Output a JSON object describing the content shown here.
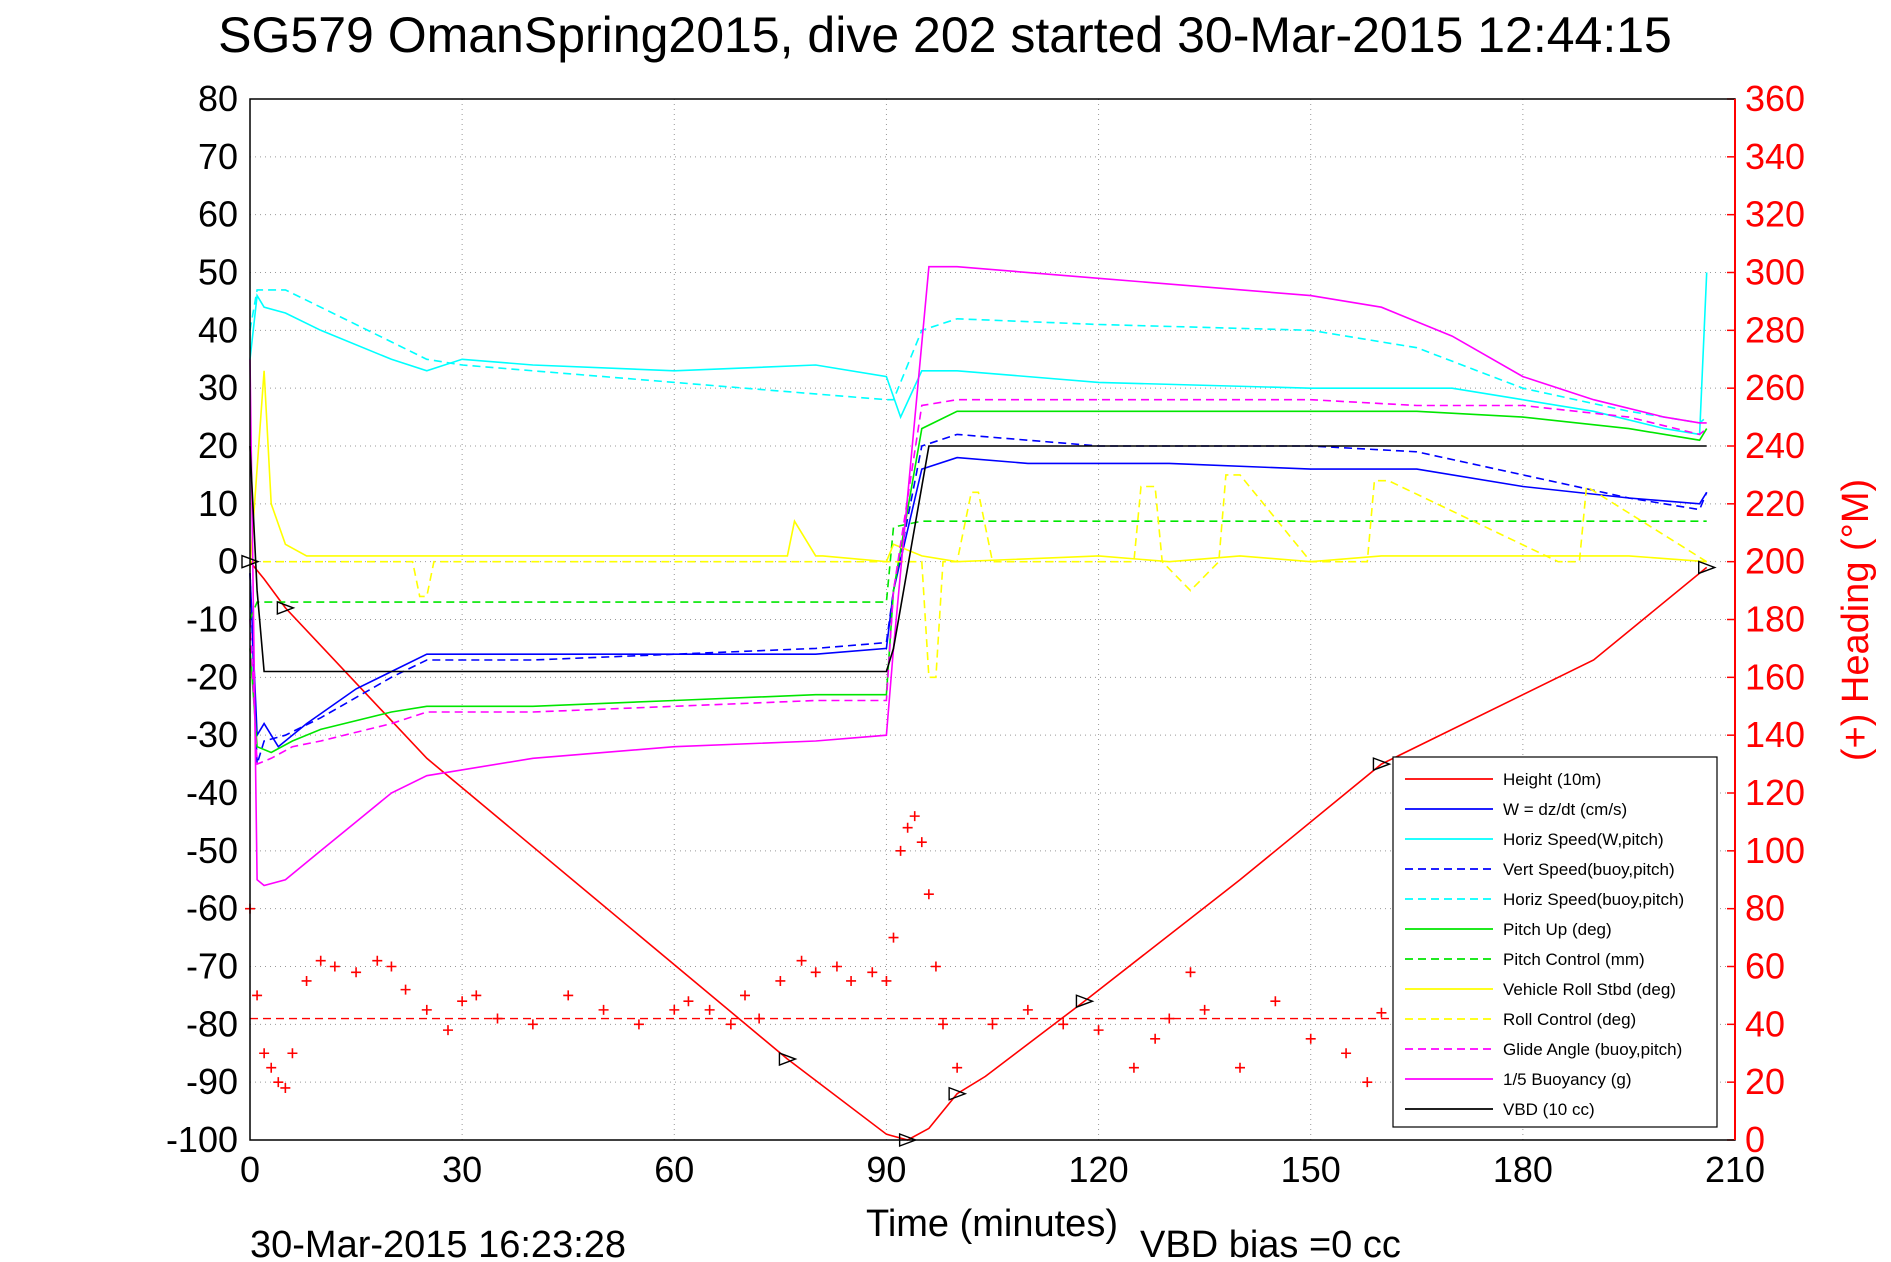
{
  "title": "SG579 OmanSpring2015, dive 202 started 30-Mar-2015 12:44:15",
  "footer": {
    "left": "30-Mar-2015 16:23:28",
    "right": "VBD bias =0 cc"
  },
  "chart_data": {
    "type": "line",
    "xlabel": "Time (minutes)",
    "ylabel": "",
    "y2label": "(+) Heading (°M)",
    "xlim": [
      0,
      210
    ],
    "ylim": [
      -100,
      80
    ],
    "y2lim": [
      0,
      360
    ],
    "xticks": [
      "0",
      "30",
      "60",
      "90",
      "120",
      "150",
      "180",
      "210"
    ],
    "yticks": [
      "80",
      "70",
      "60",
      "50",
      "40",
      "30",
      "20",
      "10",
      "0",
      "-10",
      "-20",
      "-30",
      "-40",
      "-50",
      "-60",
      "-70",
      "-80",
      "-90",
      "-100"
    ],
    "y2ticks": [
      "360",
      "340",
      "320",
      "300",
      "280",
      "260",
      "240",
      "220",
      "200",
      "180",
      "160",
      "140",
      "120",
      "100",
      "80",
      "60",
      "40",
      "20",
      "0"
    ],
    "grid": true,
    "legend_position": "bottom-right",
    "series": [
      {
        "name": "Height (10m)",
        "color": "#ff0000",
        "style": "solid",
        "x": [
          0,
          2,
          5,
          25,
          76,
          90,
          93,
          96,
          100,
          104,
          118,
          140,
          160,
          190,
          206
        ],
        "y": [
          0,
          -3,
          -8,
          -34,
          -86,
          -99,
          -100,
          -98,
          -92,
          -89,
          -76,
          -55,
          -35,
          -17,
          -1
        ]
      },
      {
        "name": "W = dz/dt (cm/s)",
        "color": "#0000ff",
        "style": "solid",
        "x": [
          0,
          1,
          2,
          4,
          8,
          15,
          25,
          40,
          60,
          80,
          90,
          91,
          95,
          100,
          110,
          130,
          150,
          165,
          180,
          195,
          205,
          206
        ],
        "y": [
          -2,
          -30,
          -28,
          -32,
          -28,
          -22,
          -16,
          -16,
          -16,
          -16,
          -15,
          -5,
          16,
          18,
          17,
          17,
          16,
          16,
          13,
          11,
          10,
          12
        ]
      },
      {
        "name": "Horiz Speed(W,pitch)",
        "color": "#00ffff",
        "style": "solid",
        "x": [
          0,
          1,
          2,
          5,
          10,
          20,
          25,
          30,
          40,
          60,
          80,
          90,
          92,
          95,
          100,
          120,
          150,
          170,
          180,
          190,
          200,
          205,
          206
        ],
        "y": [
          35,
          46,
          44,
          43,
          40,
          35,
          33,
          35,
          34,
          33,
          34,
          32,
          25,
          33,
          33,
          31,
          30,
          30,
          28,
          26,
          23,
          22,
          50
        ]
      },
      {
        "name": "Vert Speed(buoy,pitch)",
        "color": "#0000ff",
        "style": "dashed",
        "x": [
          0,
          1,
          2,
          5,
          10,
          20,
          25,
          40,
          60,
          80,
          90,
          91,
          95,
          100,
          120,
          150,
          165,
          180,
          195,
          205,
          206
        ],
        "y": [
          -2,
          -35,
          -31,
          -30,
          -27,
          -20,
          -17,
          -17,
          -16,
          -15,
          -14,
          -5,
          20,
          22,
          20,
          20,
          19,
          15,
          11,
          9,
          12
        ]
      },
      {
        "name": "Horiz Speed(buoy,pitch)",
        "color": "#00ffff",
        "style": "dashed",
        "x": [
          0,
          1,
          5,
          10,
          20,
          25,
          30,
          50,
          70,
          90,
          91,
          95,
          100,
          120,
          150,
          165,
          180,
          195,
          205,
          206
        ],
        "y": [
          40,
          47,
          47,
          44,
          38,
          35,
          34,
          32,
          30,
          28,
          28,
          40,
          42,
          41,
          40,
          37,
          30,
          26,
          24,
          25
        ]
      },
      {
        "name": "Pitch Up (deg)",
        "color": "#00e600",
        "style": "solid",
        "x": [
          0,
          1,
          3,
          6,
          10,
          20,
          25,
          40,
          60,
          80,
          90,
          91,
          95,
          100,
          120,
          150,
          165,
          180,
          195,
          205,
          206
        ],
        "y": [
          -15,
          -32,
          -33,
          -31,
          -29,
          -26,
          -25,
          -25,
          -24,
          -23,
          -23,
          -5,
          23,
          26,
          26,
          26,
          26,
          25,
          23,
          21,
          23
        ]
      },
      {
        "name": "Pitch Control (mm)",
        "color": "#00e600",
        "style": "dashed",
        "x": [
          0,
          1,
          5,
          90,
          91,
          95,
          206
        ],
        "y": [
          -10,
          -7,
          -7,
          -7,
          6,
          7,
          7
        ]
      },
      {
        "name": "Vehicle Roll Stbd (deg)",
        "color": "#ffff00",
        "style": "solid",
        "x": [
          0,
          2,
          3,
          5,
          8,
          20,
          40,
          60,
          76,
          77,
          80,
          81,
          90,
          91,
          95,
          100,
          120,
          130,
          140,
          150,
          160,
          180,
          195,
          206
        ],
        "y": [
          -1,
          33,
          10,
          3,
          1,
          1,
          1,
          1,
          1,
          7,
          1,
          1,
          0,
          3,
          1,
          0,
          1,
          0,
          1,
          0,
          1,
          1,
          1,
          0
        ]
      },
      {
        "name": "Roll Control (deg)",
        "color": "#ffff00",
        "style": "dashed",
        "x": [
          0,
          5,
          23,
          24,
          25,
          26,
          90,
          95,
          96,
          97,
          98,
          100,
          102,
          103,
          105,
          120,
          125,
          126,
          128,
          129,
          133,
          137,
          138,
          140,
          150,
          158,
          159,
          161,
          185,
          188,
          189,
          206
        ],
        "y": [
          0,
          0,
          0,
          -6,
          -6,
          0,
          0,
          0,
          -20,
          -20,
          0,
          0,
          12,
          12,
          0,
          0,
          0,
          13,
          13,
          0,
          -5,
          0,
          15,
          15,
          0,
          0,
          14,
          14,
          0,
          0,
          13,
          0
        ]
      },
      {
        "name": "Glide Angle (buoy,pitch)",
        "color": "#ff00ff",
        "style": "dashed",
        "x": [
          0,
          1,
          3,
          6,
          10,
          20,
          25,
          40,
          60,
          80,
          90,
          91,
          95,
          100,
          120,
          150,
          165,
          180,
          195,
          205,
          206
        ],
        "y": [
          -10,
          -35,
          -34,
          -32,
          -31,
          -28,
          -26,
          -26,
          -25,
          -24,
          -24,
          -5,
          27,
          28,
          28,
          28,
          27,
          27,
          25,
          22,
          23
        ]
      },
      {
        "name": "1/5 Buoyancy (g)",
        "color": "#ff00ff",
        "style": "solid",
        "x": [
          0,
          1,
          2,
          5,
          10,
          15,
          20,
          25,
          40,
          60,
          80,
          90,
          91,
          96,
          100,
          120,
          150,
          160,
          170,
          180,
          190,
          200,
          205,
          206
        ],
        "y": [
          35,
          -55,
          -56,
          -55,
          -50,
          -45,
          -40,
          -37,
          -34,
          -32,
          -31,
          -30,
          -15,
          51,
          51,
          49,
          46,
          44,
          39,
          32,
          28,
          25,
          24,
          24
        ]
      },
      {
        "name": "VBD (10 cc)",
        "color": "#000000",
        "style": "solid",
        "x": [
          0,
          1,
          2,
          90,
          91,
          96,
          206
        ],
        "y": [
          20,
          -5,
          -19,
          -19,
          -15,
          20,
          20
        ]
      }
    ],
    "heading": {
      "color": "#ff0000",
      "marker": "+",
      "axis": "right",
      "x": [
        0,
        1,
        2,
        3,
        4,
        5,
        6,
        8,
        10,
        12,
        15,
        18,
        20,
        22,
        25,
        28,
        30,
        32,
        35,
        40,
        45,
        50,
        55,
        60,
        62,
        65,
        68,
        70,
        72,
        75,
        78,
        80,
        83,
        85,
        88,
        90,
        91,
        92,
        93,
        94,
        95,
        96,
        97,
        98,
        100,
        105,
        110,
        115,
        120,
        125,
        128,
        130,
        133,
        135,
        140,
        145,
        150,
        155,
        158,
        160
      ],
      "y": [
        80,
        50,
        30,
        25,
        20,
        18,
        30,
        55,
        62,
        60,
        58,
        62,
        60,
        52,
        45,
        38,
        48,
        50,
        42,
        40,
        50,
        45,
        40,
        45,
        48,
        45,
        40,
        50,
        42,
        55,
        62,
        58,
        60,
        55,
        58,
        55,
        70,
        100,
        108,
        112,
        103,
        85,
        60,
        40,
        25,
        40,
        45,
        40,
        38,
        25,
        35,
        42,
        58,
        45,
        25,
        48,
        35,
        30,
        20,
        44
      ],
      "mean": 42
    }
  }
}
